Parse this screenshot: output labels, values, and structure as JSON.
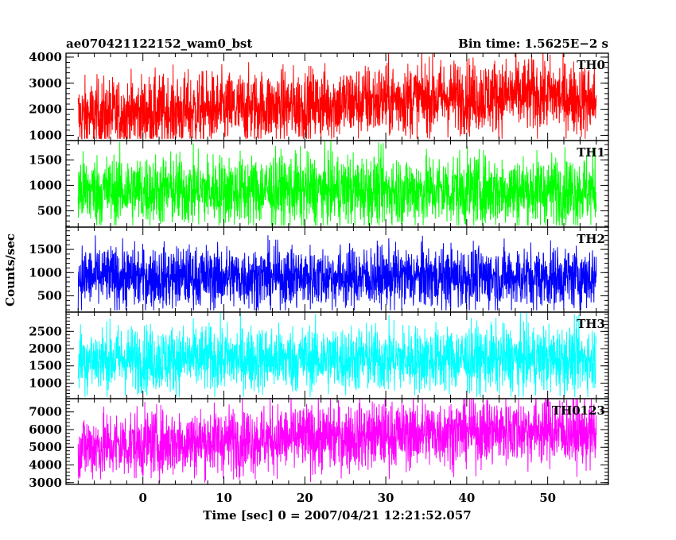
{
  "chart_data": {
    "type": "line",
    "title": "ae070421122152_wam0_bst",
    "title_right": "Bin time: 1.5625E−2 s",
    "xlabel": "Time [sec] 0 = 2007/04/21 12:21:52.057",
    "ylabel": "Counts/sec",
    "xlim": [
      -9.5,
      57.5
    ],
    "x_ticks": [
      0,
      10,
      20,
      30,
      40,
      50
    ],
    "x_tick_labels": [
      "0",
      "10",
      "20",
      "30",
      "40",
      "50"
    ],
    "grid": false,
    "legend": "panel labels at top-right",
    "panels": [
      {
        "name": "TH0",
        "color": "#ff0000",
        "ylim": [
          800,
          4150
        ],
        "y_ticks": [
          1000,
          2000,
          3000,
          4000
        ],
        "y_tick_labels": [
          "1000",
          "2000",
          "3000",
          "4000"
        ],
        "x_start": -8,
        "x_end": 56,
        "trend_x": [
          -8,
          0,
          10,
          20,
          30,
          40,
          50,
          56
        ],
        "trend_mean": [
          1700,
          1850,
          2000,
          2150,
          2350,
          2500,
          2550,
          2300
        ],
        "noise": 700
      },
      {
        "name": "TH1",
        "color": "#00ff00",
        "ylim": [
          180,
          1880
        ],
        "y_ticks": [
          500,
          1000,
          1500
        ],
        "y_tick_labels": [
          "500",
          "1000",
          "1500"
        ],
        "x_start": -8,
        "x_end": 56,
        "trend_x": [
          -8,
          56
        ],
        "trend_mean": [
          900,
          900
        ],
        "noise": 350
      },
      {
        "name": "TH2",
        "color": "#0000ff",
        "ylim": [
          150,
          1980
        ],
        "y_ticks": [
          500,
          1000,
          1500
        ],
        "y_tick_labels": [
          "500",
          "1000",
          "1500"
        ],
        "x_start": -8,
        "x_end": 56,
        "trend_x": [
          -8,
          56
        ],
        "trend_mean": [
          900,
          900
        ],
        "noise": 330
      },
      {
        "name": "TH3",
        "color": "#00ffff",
        "ylim": [
          550,
          3060
        ],
        "y_ticks": [
          1000,
          1500,
          2000,
          2500
        ],
        "y_tick_labels": [
          "1000",
          "1500",
          "2000",
          "2500"
        ],
        "x_start": -8,
        "x_end": 56,
        "trend_x": [
          -8,
          56
        ],
        "trend_mean": [
          1700,
          1700
        ],
        "noise": 480
      },
      {
        "name": "TH0123",
        "color": "#ff00ff",
        "ylim": [
          2900,
          7750
        ],
        "y_ticks": [
          3000,
          4000,
          5000,
          6000,
          7000
        ],
        "y_tick_labels": [
          "3000",
          "4000",
          "5000",
          "6000",
          "7000"
        ],
        "x_start": -8,
        "x_end": 56,
        "trend_x": [
          -8,
          0,
          10,
          20,
          30,
          40,
          50,
          56
        ],
        "trend_mean": [
          5000,
          5200,
          5400,
          5500,
          5700,
          5900,
          6000,
          5700
        ],
        "noise": 950
      }
    ]
  }
}
